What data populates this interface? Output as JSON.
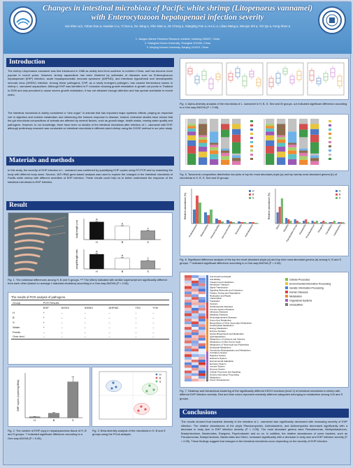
{
  "header": {
    "title_line1": "Changes in intestinal microbiota of Pacific white shrimp (Litopenaeus vannamei)",
    "title_line2": "with Enterocytozoon hepatopenaei infection severity",
    "authors": "Hui Shen a,b, Yuhan Dou a, Haodan Li a, Yi Guo a, Ge Jiang a, Xihe Wan a, Jie Cheng a, Xiangting Fan a, Hui Li a, Libao Wang a, Wenjun Shi a, Yizi Qu a, Feng Shen a",
    "aff1": "1. Jiangsu Marine Fisheries Research Institute, Nantong 226007, China",
    "aff2": "2. Shanghai Ocean University, Shanghai 201306, China",
    "aff3": "3. Nanjing Normal University, Nanjing 210023, China"
  },
  "intro": {
    "heading": "Introduction",
    "p1": "The shrimp Litopenaeus vannamei was first introduced in 1988 as widely bred from southern to northern China, and has become more popular in recent years. However, shrimp aquaculture has been hindered by outbreaks of diseases such as Enterocytozoon hepatopenaei (EHP) infection, acute hepatopancreatic necrosis syndrome (AHPND), and infectious hypodermal and hematopoietic necrosis virus (IHHNV) infection. Among these pathogens, EHP, as a newly emergent pathogen, has caused tremendous losses in shrimp L. vannamei aquaculture. Although EHP was identified in P. monodon showing growth retardation in growth out ponds in Thailand in 2009 and was prevalent to cause severe growth retardation, it has not attracted enough attention and has spread worldwide in recent years.",
    "p2": "The intestinal microbiota is widely considered a \"new organ\" in animals that has important major systemic effects, playing an important role in digestion and nutrient metabolism and influencing the immune response to disease. Indeed, extensive studies have shown that the gut microbiota compositions of animals are affected by several factors, such as growth stage, health status, rearing water quality and pathogens. However, to our knowledge, there have been no studies of the intestinal microbiota after infection of L. vannamei with EHP, although preliminary research was conducted on intestinal microbiota in different-sized shrimp using the DGGE method in our prior study."
  },
  "methods": {
    "heading": "Materials and methods",
    "p1": "In this study, the severity of EHP infection in L. vannamei was confirmed by quantifying EHP copies using RT-PCR and by examining the body with different body sizes. Second, 16S rRNA gene-based analysis was used to explore the changes in the intestinal microbiota of Pacific white shrimp with different severities of EHP infection. These results could help us to better understand the response of the intestinal microbiota to EHP infection."
  },
  "result": {
    "heading": "Result",
    "fig1_caption": "Fig. 1. The individual differences among H, B and S groups. *** The letters indicated with similar superscript are significantly different from each other (based on average ± standard deviation) according to a One-way ANOVA (P < 0.05).",
    "bar1_ylabel": "body length (cm)",
    "bar2_ylabel": "weight/length ratio",
    "bar1_letters": [
      "a",
      "b",
      "c"
    ],
    "bar2_letters": [
      "a",
      "b",
      "c"
    ],
    "groups": [
      "H",
      "B",
      "S"
    ],
    "table_title": "The results of PCR analysis of pathogens.",
    "table_head1": [
      "Group",
      "PCR Results"
    ],
    "table_head2": [
      "",
      "EHP",
      "WSSV",
      "IHHNV",
      "AHPND",
      "TSV",
      "YHV"
    ],
    "table_rows": [
      [
        "H",
        "+",
        "–",
        "–",
        "–",
        "–",
        "–"
      ],
      [
        "B",
        "+",
        "–",
        "–",
        "–",
        "–",
        "–"
      ],
      [
        "S",
        "+",
        "–",
        "–",
        "–",
        "–",
        "–"
      ],
      [
        "Water",
        "+",
        "–",
        "–",
        "–",
        "–",
        "–"
      ],
      [
        "Feeds",
        "–",
        "–",
        "–",
        "–",
        "–",
        "–"
      ],
      [
        "Over-bed",
        "–",
        "–",
        "–",
        "–",
        "–",
        "–"
      ]
    ],
    "fig2_caption": "Fig. 2. The number of EHP copy in hepatopancreas tissue of H, B and S groups. ** indicated significant difference according to a One-way ANOVA (P < 0.05).",
    "fig2_ylabel": "EHP copies (copies/ng DNA)",
    "fig3_caption": "Fig. 3. Beta-diversity analysis of the microbiota in H, B and S groups using the PCoA analysis.",
    "fig4_caption": "Fig. 4. Alpha-diversity analysis of the microbiota of L. vannamei in H, B, S, Sed and W groups. a,b indicated significant difference according to a One-way ANOVA (P < 0.05).",
    "fig5_caption": "Fig. 5. Taxonomic composition distribution bar plots of top ten most abundant phyla (a) and top twenty most abundant genera (b) of microbiota in H, B, S, Sed and W groups.",
    "fig6_caption": "Fig. 6. Significant difference analysis of the top ten most abundant phyla (a) and top nine most abundant genera (b) among H, B and S groups. ** indicated significant difference according to a One-way ANOVA (P < 0.05).",
    "fig6a_ylabel": "Relative abundance (%)",
    "fig6b_ylabel": "Relative abundance (%)",
    "fig6a_xlabels": [
      "Proteobacteria",
      "Bacteroidetes",
      "Planctomycetes",
      "Verrucomicrobia",
      "Tenericutes",
      "Actinobacteria"
    ],
    "fig6b_xlabels": [
      "Vibrio",
      "Nautella",
      "Pseudoalteromonas",
      "Shewanella",
      "Photobacterium",
      "Ruegeria",
      "Candidatus",
      "Lactobacillus"
    ],
    "fig7_caption": "Fig. 7. Heatmap and hierarchical clustering of the significantly different KEGG functions (level 2) of intestinal microbiota in shrimp with different EHP infection severity. Red and blue colors represent markedly different categories belonging to metabolism among H,B and S groups.",
    "kegg_labels": [
      "Cell Growth and Death",
      "Cell Motility",
      "Transport and Catabolism",
      "Membrane Transport",
      "Signal Transduction",
      "Signaling Molecules and Interaction",
      "Folding, Sorting and Degradation",
      "Replication and Repair",
      "Transcription",
      "Translation",
      "Cancers",
      "Cardiovascular Diseases",
      "Immune System Diseases",
      "Infectious Diseases",
      "Metabolic Diseases",
      "Neurodegenerative Diseases",
      "Amino Acid Metabolism",
      "Biosynthesis of Other Secondary Metabolites",
      "Carbohydrate Metabolism",
      "Energy Metabolism",
      "Enzyme Families",
      "Glycan Biosynthesis and Metabolism",
      "Lipid Metabolism",
      "Metabolism of Cofactors and Vitamins",
      "Metabolism of Other Amino Acids",
      "Metabolism of Terpenoids and Polyketides",
      "Nucleotide Metabolism",
      "Xenobiotics Biodegradation and Metabolism",
      "Circulatory System",
      "Digestive System",
      "Endocrine System",
      "Environmental Adaptation",
      "Excretory System",
      "Immune System",
      "Nervous System",
      "Cellular Processes and Signaling",
      "Genetic Information Processing",
      "Metabolism",
      "Poorly Characterized"
    ],
    "kegg_legend": [
      "Cellular Processes",
      "Environmental Information Processing",
      "Genetic Information Processing",
      "Human Diseases",
      "Metabolism",
      "Organismal Systems",
      "Unclassified"
    ],
    "kegg_legend_colors": [
      "#7fbf3f",
      "#e8c53a",
      "#4f7fd0",
      "#e04040",
      "#f08a30",
      "#a060c0",
      "#777777"
    ],
    "kegg_values": [
      [
        0.8,
        -0.6,
        -0.2
      ],
      [
        0.6,
        0.1,
        -0.7
      ],
      [
        -0.3,
        0.9,
        -0.6
      ],
      [
        0.2,
        -0.8,
        0.6
      ],
      [
        0.9,
        -0.4,
        -0.5
      ],
      [
        0.4,
        0.5,
        -0.9
      ],
      [
        -0.7,
        0.2,
        0.5
      ],
      [
        0.6,
        -0.6,
        0.0
      ],
      [
        -0.2,
        0.8,
        -0.6
      ],
      [
        0.5,
        0.3,
        -0.8
      ],
      [
        -0.8,
        0.4,
        0.4
      ],
      [
        0.7,
        -0.2,
        -0.5
      ],
      [
        0.3,
        -0.9,
        0.6
      ],
      [
        -0.5,
        0.7,
        -0.2
      ],
      [
        0.9,
        -0.3,
        -0.6
      ],
      [
        -0.4,
        -0.4,
        0.8
      ],
      [
        0.6,
        0.2,
        -0.8
      ],
      [
        -0.6,
        0.9,
        -0.3
      ],
      [
        0.2,
        -0.7,
        0.5
      ],
      [
        0.8,
        -0.1,
        -0.7
      ],
      [
        -0.3,
        0.6,
        -0.3
      ],
      [
        0.5,
        -0.8,
        0.3
      ],
      [
        -0.9,
        0.3,
        0.6
      ],
      [
        0.4,
        0.4,
        -0.8
      ],
      [
        0.7,
        -0.6,
        -0.1
      ],
      [
        -0.2,
        -0.5,
        0.7
      ],
      [
        0.6,
        0.3,
        -0.9
      ],
      [
        -0.7,
        0.8,
        -0.1
      ],
      [
        0.3,
        -0.2,
        -0.1
      ],
      [
        0.9,
        -0.5,
        -0.4
      ],
      [
        -0.5,
        0.1,
        0.4
      ],
      [
        0.2,
        0.7,
        -0.9
      ],
      [
        -0.8,
        -0.2,
        1.0
      ],
      [
        0.6,
        -0.9,
        0.3
      ],
      [
        -0.1,
        0.5,
        -0.4
      ],
      [
        0.8,
        0.2,
        -1.0
      ],
      [
        -0.4,
        -0.6,
        1.0
      ],
      [
        0.5,
        0.1,
        -0.6
      ],
      [
        -0.6,
        0.4,
        0.2
      ]
    ]
  },
  "conclusions": {
    "heading": "Conclusions",
    "p1": "The results showed that bacterial diversity in the intestine of L. vannamei was significantly decreased with increasing severity of EHP infection. The relative abundances of the phyla Planctomycetes, Actinobacteria, and Actinomycetes decreased significantly with a decrease in body size in EHP infection severity (P < 0.05). The most abundant genera were Pseudomonas, Methylobacterium, Bradyrhizobium, Bacteroides, Ruegeria, Psychrobacter and so on. In addition, the relative abundances of some bacteria, such as Pseudomonas, Bradyrhizobium, Bacteroides and Vibrio, increased significantly with a decrease in body size and EHP infection severity (P < 0.05). These findings suggest that changes in the intestinal microbiota occur depending on the severity of EHP infection."
  },
  "chart_data": [
    {
      "type": "bar",
      "categories": [
        "H",
        "B",
        "S"
      ],
      "values": [
        13.5,
        10.2,
        6.8
      ],
      "errors": [
        0.6,
        0.5,
        0.5
      ],
      "title": "",
      "xlabel": "",
      "ylabel": "body length (cm)",
      "ylim": [
        0,
        16
      ]
    },
    {
      "type": "bar",
      "categories": [
        "H",
        "B",
        "S"
      ],
      "values": [
        0.75,
        0.55,
        0.42
      ],
      "errors": [
        0.05,
        0.04,
        0.04
      ],
      "title": "",
      "xlabel": "",
      "ylabel": "weight/length ratio",
      "ylim": [
        0,
        1
      ]
    },
    {
      "type": "bar",
      "categories": [
        "H",
        "B",
        "S"
      ],
      "values": [
        2,
        10,
        80
      ],
      "errors": [
        0.5,
        2,
        12
      ],
      "title": "",
      "xlabel": "",
      "ylabel": "EHP copies (copies/ng DNA)",
      "ylim": [
        0,
        100
      ]
    },
    {
      "type": "bar",
      "categories": [
        "Proteobacteria",
        "Bacteroidetes",
        "Planctomycetes",
        "Verrucomicrobia",
        "Tenericutes",
        "Actinobacteria"
      ],
      "series": [
        {
          "name": "H",
          "values": [
            20,
            16,
            7,
            5,
            3,
            2
          ]
        },
        {
          "name": "B",
          "values": [
            40,
            12,
            5,
            3,
            2,
            2
          ]
        },
        {
          "name": "S",
          "values": [
            30,
            20,
            3,
            2,
            2,
            1
          ]
        }
      ],
      "title": "",
      "xlabel": "",
      "ylabel": "Relative abundance (%)",
      "ylim": [
        0,
        50
      ]
    },
    {
      "type": "bar",
      "categories": [
        "Vibrio",
        "Nautella",
        "Pseudoalteromonas",
        "Shewanella",
        "Photobacterium",
        "Ruegeria",
        "Candidatus",
        "Lactobacillus"
      ],
      "series": [
        {
          "name": "H",
          "values": [
            8,
            4,
            3,
            2,
            2,
            1,
            1,
            1
          ]
        },
        {
          "name": "B",
          "values": [
            12,
            3,
            2,
            3,
            1,
            2,
            1,
            1
          ]
        },
        {
          "name": "S",
          "values": [
            18,
            2,
            1,
            1,
            2,
            1,
            2,
            1
          ]
        }
      ],
      "title": "",
      "xlabel": "",
      "ylabel": "Relative abundance (%)",
      "ylim": [
        0,
        25
      ]
    }
  ],
  "colors": {
    "H": "#4a7fc1",
    "B": "#e35656",
    "S": "#6fb96f",
    "section": "#1b3b80"
  }
}
